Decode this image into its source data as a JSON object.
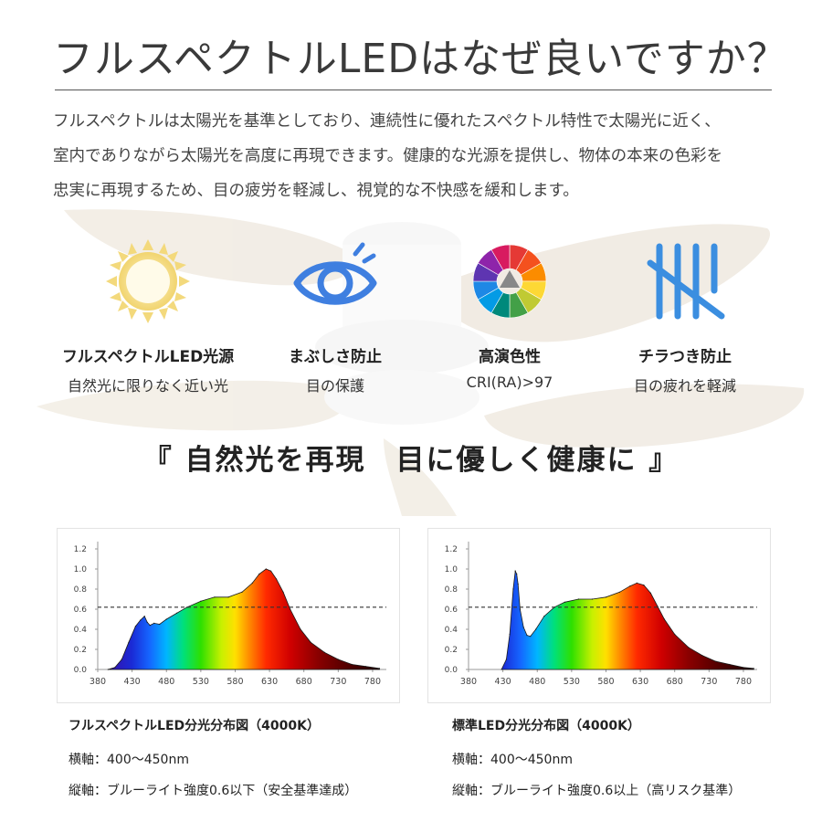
{
  "header": {
    "title": "フルスペクトルLEDはなぜ良いですか？",
    "intro_lines": [
      "フルスペクトルは太陽光を基準としており、連続性に優れたスペクトル特性で太陽光に近く、",
      "室内でありながら太陽光を高度に再現できます。健康的な光源を提供し、物体の本来の色彩を",
      "忠実に再現するため、目の疲労を軽減し、視覚的な不快感を緩和します。"
    ]
  },
  "features": [
    {
      "name": "フルスペクトルLED光源",
      "desc": "自然光に限りなく近い光",
      "icon": "sun-icon"
    },
    {
      "name": "まぶしさ防止",
      "desc": "目の保護",
      "icon": "eye-icon"
    },
    {
      "name": "高演色性",
      "desc": "CRI(RA)>97",
      "icon": "color-wheel-icon"
    },
    {
      "name": "チラつき防止",
      "desc": "目の疲れを軽減",
      "icon": "anti-flicker-icon"
    }
  ],
  "slogan": "『 自然光を再現　目に優しく健康に 』",
  "colors": {
    "eye_blue": "#3f7fe0",
    "sun_yellow": "#f2d77a",
    "flicker_blue": "#3b8ee0",
    "threshold_line": "#333333"
  },
  "chart_data": [
    {
      "type": "area",
      "title": "フルスペクトルLED分光分布図（4000K）",
      "x_ticks": [
        380,
        430,
        480,
        530,
        580,
        630,
        680,
        730,
        780
      ],
      "y_ticks": [
        "0.0",
        "0.2",
        "0.4",
        "0.6",
        "0.8",
        "1.0",
        "1.2"
      ],
      "xlim": [
        380,
        800
      ],
      "ylim": [
        0,
        1.2
      ],
      "threshold": 0.62,
      "x": [
        395,
        405,
        415,
        425,
        435,
        442,
        448,
        452,
        456,
        462,
        470,
        480,
        495,
        510,
        530,
        550,
        570,
        590,
        605,
        615,
        625,
        632,
        640,
        650,
        660,
        675,
        690,
        710,
        730,
        750,
        770,
        790
      ],
      "y": [
        0.0,
        0.02,
        0.1,
        0.27,
        0.43,
        0.49,
        0.53,
        0.47,
        0.44,
        0.46,
        0.45,
        0.5,
        0.56,
        0.62,
        0.68,
        0.72,
        0.72,
        0.77,
        0.86,
        0.95,
        1.0,
        0.98,
        0.9,
        0.77,
        0.6,
        0.4,
        0.27,
        0.17,
        0.1,
        0.05,
        0.03,
        0.01
      ],
      "caption_lines": [
        "横軸：400〜450nm",
        "縦軸：ブルーライト強度0.6以下（安全基準達成）"
      ]
    },
    {
      "type": "area",
      "title": "標準LED分光分布図（4000K）",
      "x_ticks": [
        380,
        430,
        480,
        530,
        580,
        630,
        680,
        730,
        780
      ],
      "y_ticks": [
        "0.0",
        "0.2",
        "0.4",
        "0.6",
        "0.8",
        "1.0",
        "1.2"
      ],
      "xlim": [
        380,
        800
      ],
      "ylim": [
        0,
        1.2
      ],
      "threshold": 0.62,
      "x": [
        428,
        435,
        440,
        445,
        448,
        450,
        452,
        455,
        460,
        465,
        470,
        478,
        490,
        505,
        520,
        540,
        560,
        580,
        600,
        615,
        625,
        635,
        645,
        655,
        665,
        680,
        700,
        720,
        740,
        760,
        780,
        795
      ],
      "y": [
        0.0,
        0.1,
        0.35,
        0.8,
        0.98,
        0.95,
        0.85,
        0.6,
        0.42,
        0.34,
        0.33,
        0.4,
        0.53,
        0.62,
        0.67,
        0.7,
        0.7,
        0.72,
        0.77,
        0.83,
        0.86,
        0.84,
        0.76,
        0.63,
        0.5,
        0.35,
        0.22,
        0.14,
        0.08,
        0.05,
        0.02,
        0.01
      ],
      "caption_lines": [
        "横軸：400〜450nm",
        "縦軸：ブルーライト強度0.6以上（高リスク基準）"
      ]
    }
  ]
}
